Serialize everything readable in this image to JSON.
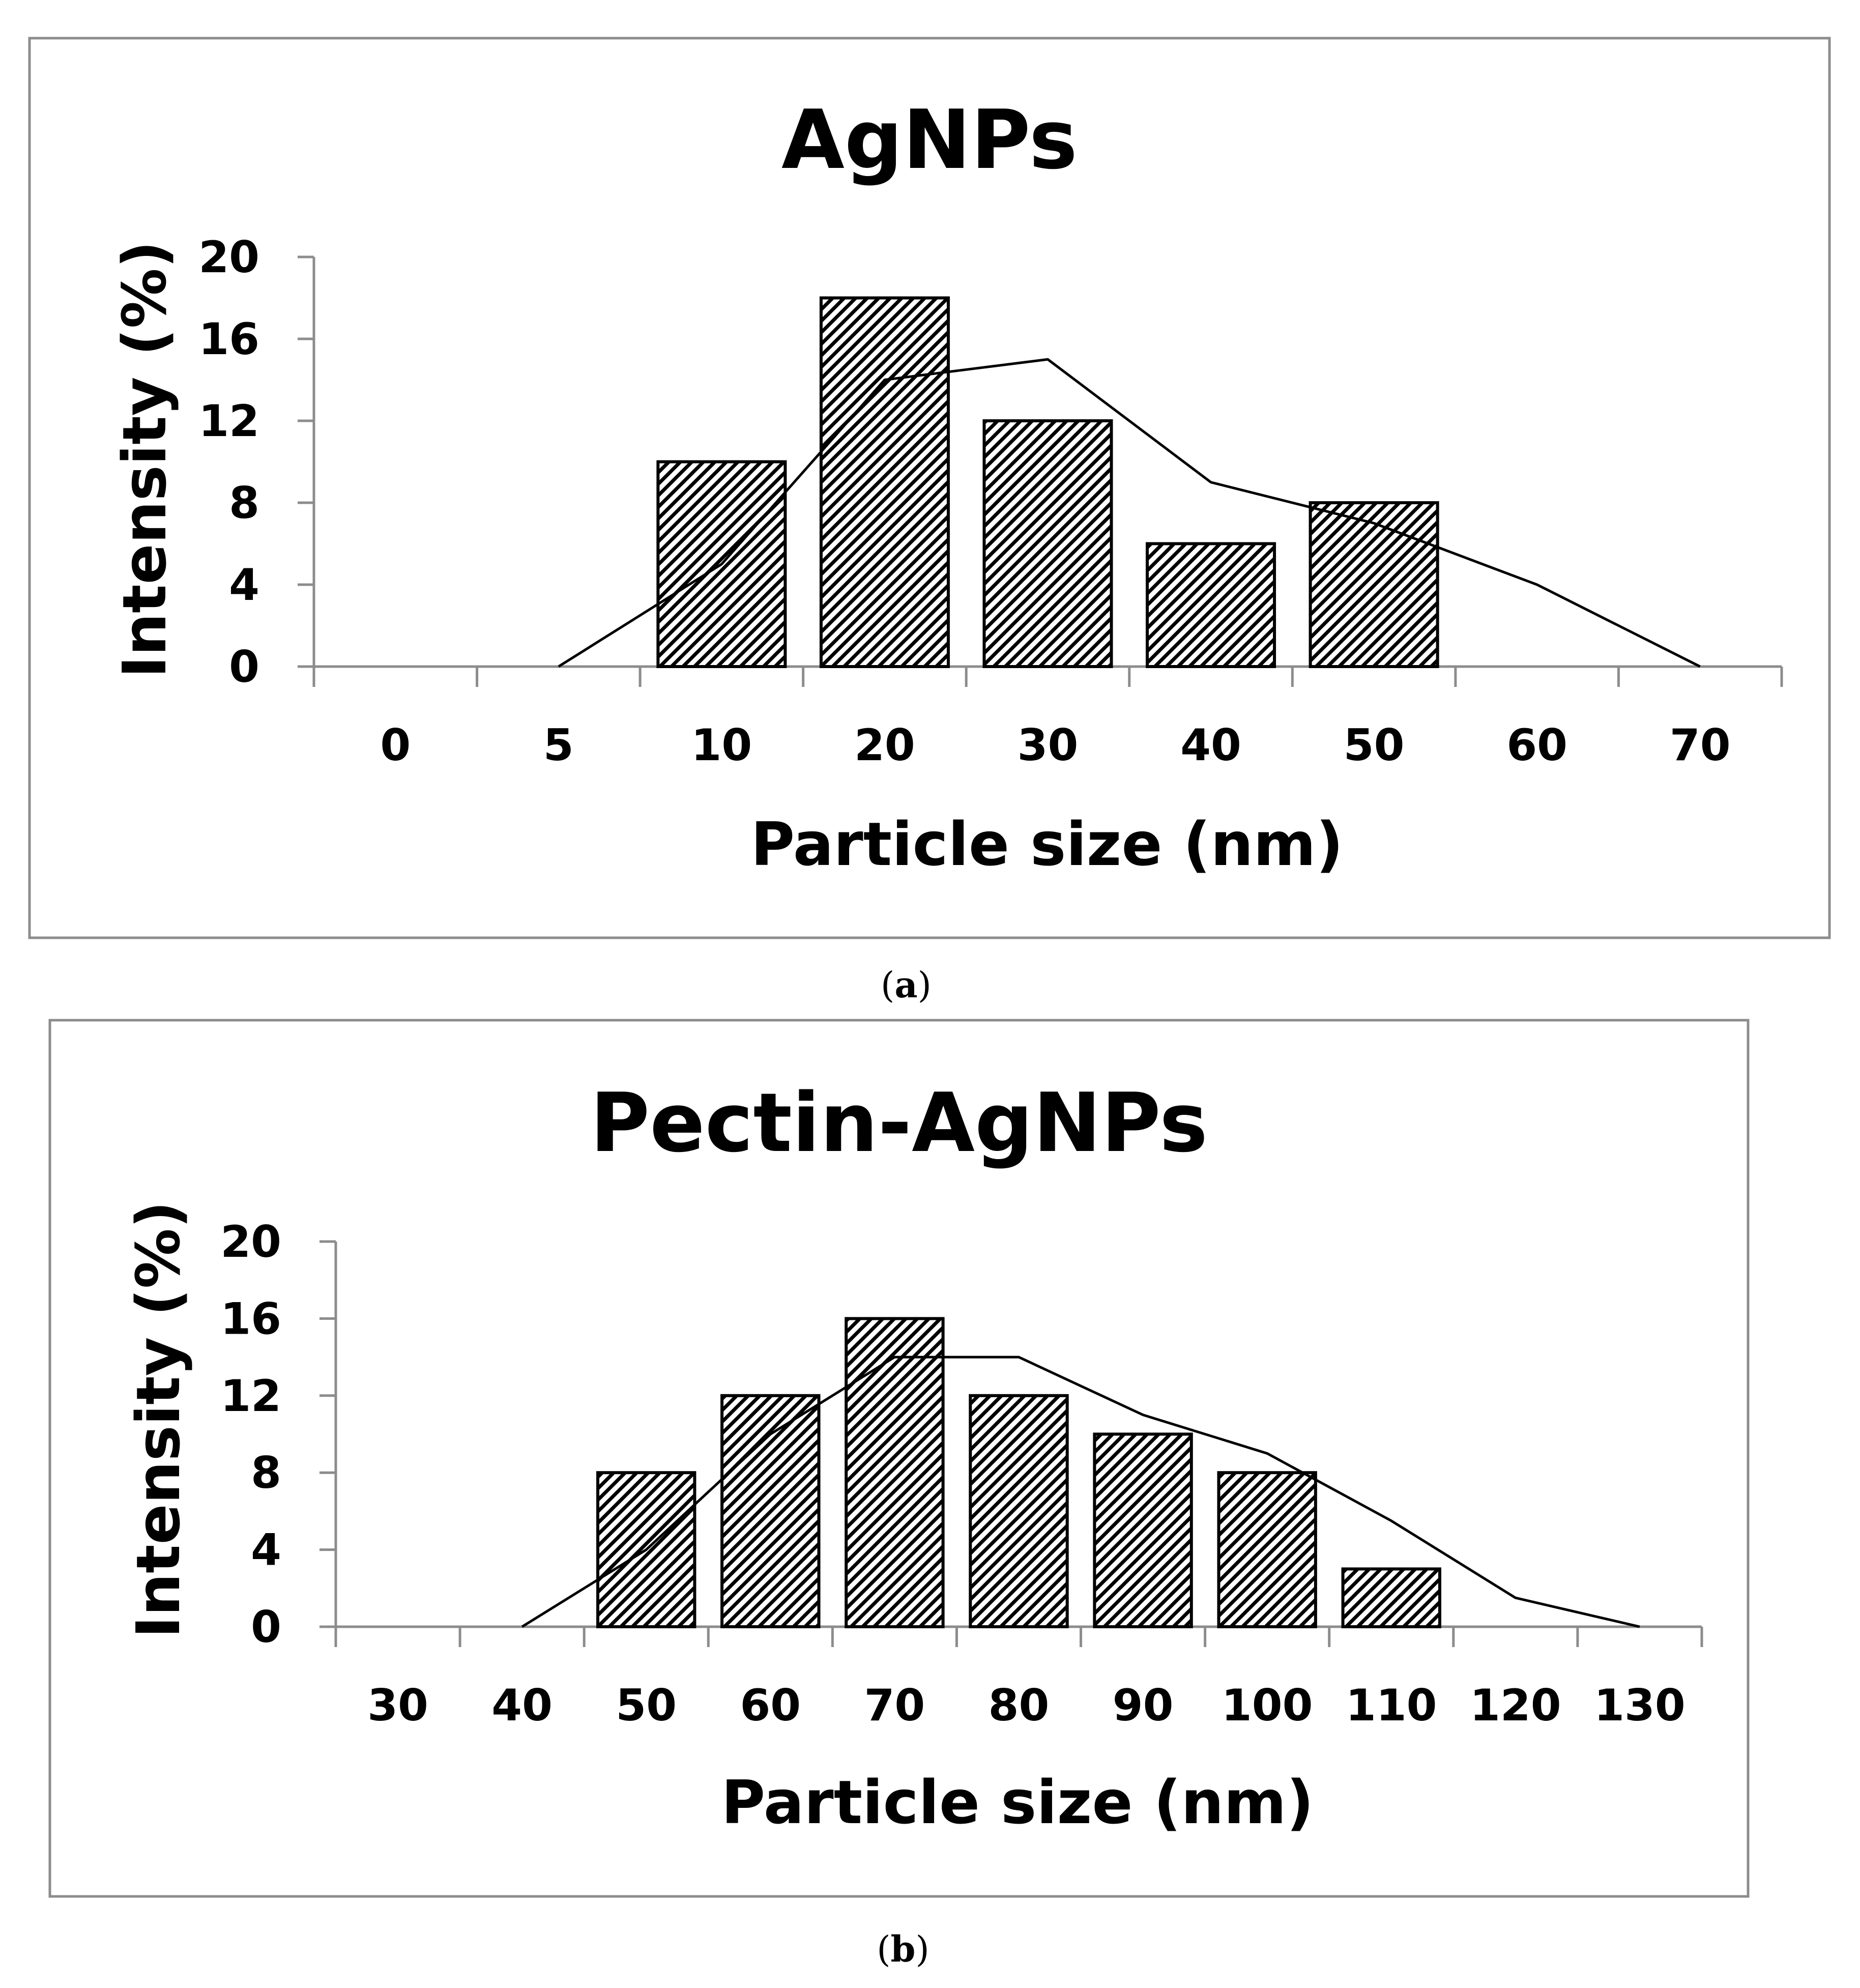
{
  "chart_data": [
    {
      "type": "bar",
      "title": "AgNPs",
      "xlabel": "Particle size (nm)",
      "ylabel": "Intensity (%)",
      "caption_letter": "a",
      "categories": [
        "0",
        "5",
        "10",
        "20",
        "30",
        "40",
        "50",
        "60",
        "70"
      ],
      "series": [
        {
          "type": "bar",
          "values": [
            0,
            0,
            10,
            18,
            12,
            6,
            8,
            0,
            0
          ]
        },
        {
          "type": "line",
          "values": [
            0,
            0,
            5,
            14,
            15,
            9,
            7,
            4,
            0
          ],
          "start_index": 1
        }
      ],
      "ylim": [
        0,
        20
      ],
      "yticks": [
        "0",
        "4",
        "8",
        "12",
        "16",
        "20"
      ],
      "grid": false,
      "legend": "none"
    },
    {
      "type": "bar",
      "title": "Pectin-AgNPs",
      "xlabel": "Particle size (nm)",
      "ylabel": "Intensity (%)",
      "caption_letter": "b",
      "categories": [
        "30",
        "40",
        "50",
        "60",
        "70",
        "80",
        "90",
        "100",
        "110",
        "120",
        "130"
      ],
      "series": [
        {
          "type": "bar",
          "values": [
            0,
            0,
            8,
            12,
            16,
            12,
            10,
            8,
            3,
            0,
            0
          ]
        },
        {
          "type": "line",
          "values": [
            0,
            0,
            4,
            10,
            14,
            14,
            11,
            9,
            5.5,
            1.5,
            0
          ],
          "start_index": 1
        }
      ],
      "ylim": [
        0,
        20
      ],
      "yticks": [
        "0",
        "4",
        "8",
        "12",
        "16",
        "20"
      ],
      "grid": false,
      "legend": "none"
    }
  ]
}
